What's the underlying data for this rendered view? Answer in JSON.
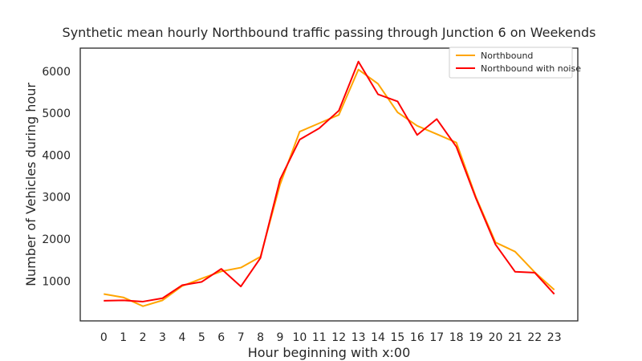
{
  "chart_data": {
    "type": "line",
    "title": "Synthetic mean hourly Northbound traffic passing through Junction 6 on Weekends",
    "xlabel": "Hour beginning with x:00",
    "ylabel": "Number of Vehicles during hour",
    "x": [
      0,
      1,
      2,
      3,
      4,
      5,
      6,
      7,
      8,
      9,
      10,
      11,
      12,
      13,
      14,
      15,
      16,
      17,
      18,
      19,
      20,
      21,
      22,
      23
    ],
    "xlim": [
      -1.2,
      24.2
    ],
    "ylim": [
      50,
      6550
    ],
    "yticks": [
      1000,
      2000,
      3000,
      4000,
      5000,
      6000
    ],
    "grid": false,
    "legend": "top-right",
    "series": [
      {
        "name": "Northbound",
        "color": "#FFA500",
        "values": [
          690,
          610,
          400,
          540,
          880,
          1060,
          1230,
          1320,
          1580,
          3300,
          4560,
          4760,
          4960,
          6040,
          5700,
          5020,
          4700,
          4500,
          4300,
          3000,
          1920,
          1700,
          1210,
          790
        ]
      },
      {
        "name": "Northbound with noise",
        "color": "#FF0000",
        "values": [
          530,
          540,
          510,
          590,
          900,
          980,
          1290,
          870,
          1550,
          3420,
          4370,
          4640,
          5060,
          6230,
          5450,
          5280,
          4480,
          4860,
          4200,
          2970,
          1870,
          1220,
          1200,
          690
        ]
      }
    ]
  }
}
